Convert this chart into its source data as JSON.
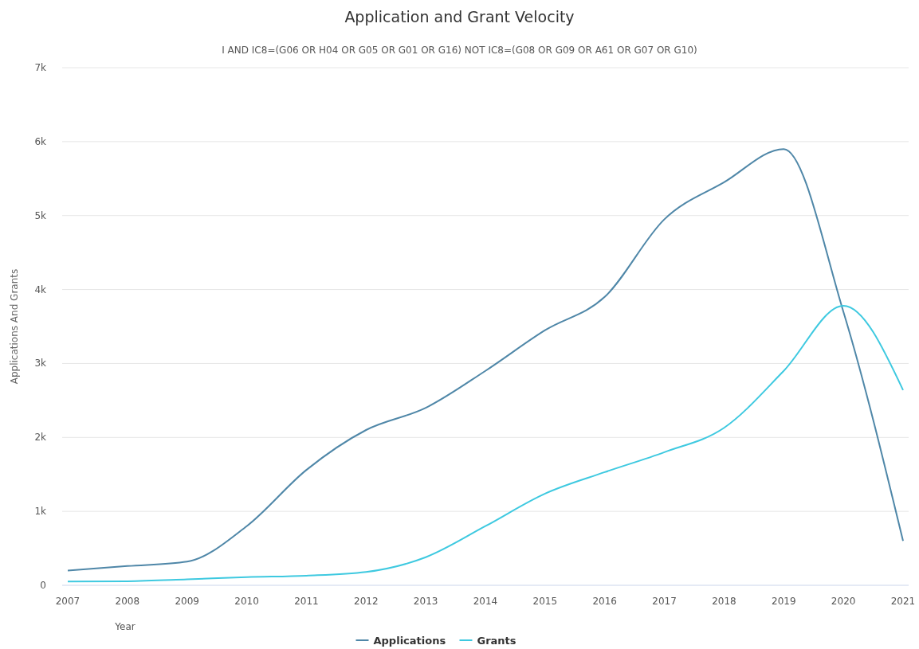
{
  "chart_data": {
    "type": "line",
    "title": "Application and Grant Velocity",
    "subtitle": "I AND IC8=(G06 OR H04 OR G05 OR G01 OR G16) NOT IC8=(G08 OR G09 OR A61 OR G07 OR G10)",
    "xlabel": "Year",
    "ylabel": "Applications And Grants",
    "categories": [
      "2007",
      "2008",
      "2009",
      "2010",
      "2011",
      "2012",
      "2013",
      "2014",
      "2015",
      "2016",
      "2017",
      "2018",
      "2019",
      "2020",
      "2021"
    ],
    "series": [
      {
        "name": "Applications",
        "color": "#4f87a8",
        "values": [
          200,
          260,
          320,
          800,
          1560,
          2100,
          2400,
          2900,
          3450,
          3900,
          4950,
          5450,
          5900,
          3700,
          600
        ]
      },
      {
        "name": "Grants",
        "color": "#3ec9e0",
        "values": [
          50,
          55,
          80,
          110,
          130,
          180,
          380,
          800,
          1240,
          1530,
          1800,
          2130,
          2900,
          3780,
          2640
        ]
      }
    ],
    "ylim": [
      0,
      7000
    ],
    "yticks": [
      {
        "value": 0,
        "label": "0"
      },
      {
        "value": 1000,
        "label": "1k"
      },
      {
        "value": 2000,
        "label": "2k"
      },
      {
        "value": 3000,
        "label": "3k"
      },
      {
        "value": 4000,
        "label": "4k"
      },
      {
        "value": 5000,
        "label": "5k"
      },
      {
        "value": 6000,
        "label": "6k"
      },
      {
        "value": 7000,
        "label": "7k"
      }
    ],
    "grid": "y",
    "legend": "bottom",
    "marker": "none",
    "line_style": "solid"
  }
}
